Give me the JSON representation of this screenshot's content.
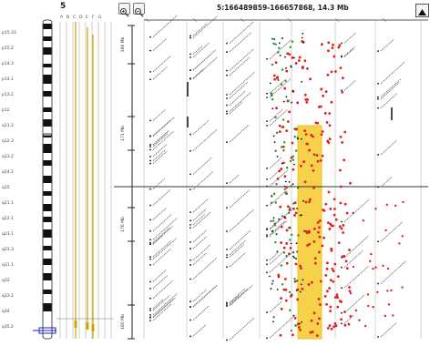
{
  "header": {
    "chromosome": "5",
    "region_label": "5:166489859-166657868, 14.3 Mb",
    "zoom_in_icon": "magnifier-plus-icon",
    "zoom_out_icon": "magnifier-minus-icon",
    "collapse_icon": "triangle-up-icon"
  },
  "ideogram": {
    "bands": [
      "p15.33",
      "p15.2",
      "p14.3",
      "p14.1",
      "p13.2",
      "p12",
      "q11.2",
      "q12.3",
      "q13.2",
      "q14.2",
      "q15",
      "q21.1",
      "q22.1",
      "q23.1",
      "q23.3",
      "q31.1",
      "q32",
      "q33.2",
      "q34",
      "q35.2"
    ],
    "columns": [
      "A",
      "B",
      "C",
      "D",
      "E",
      "F",
      "G"
    ]
  },
  "axis": {
    "ticks": [
      "166 Mb",
      "171 Mb",
      "176 Mb",
      "180 Mb"
    ]
  },
  "tracks": {
    "columns": 6
  },
  "colors": {
    "highlight": "#f0c020",
    "highlight_fill": "#f6d24a",
    "red_points": "#e02020",
    "green_points": "#2a8a2a",
    "black_points": "#111111",
    "grid": "#9a9a9a",
    "ideogram_dark": "#111111",
    "marker": "#2020c0"
  }
}
